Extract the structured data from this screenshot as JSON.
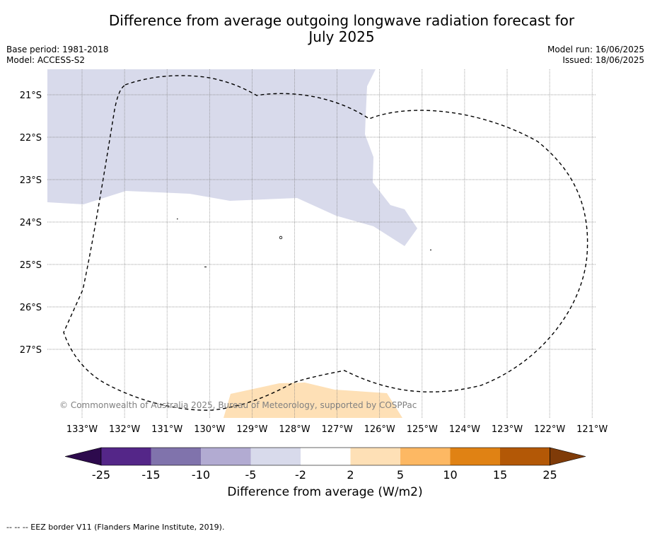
{
  "title_line1": "Difference from average outgoing longwave radiation forecast for",
  "title_line2": "July 2025",
  "base_period": "Base period: 1981-2018",
  "model": "Model: ACCESS-S2",
  "model_run": "Model run: 16/06/2025",
  "issued": "Issued: 18/06/2025",
  "copyright": "© Commonwealth of Australia 2025, Bureau of Meteorology, supported by COSPPac",
  "lat_labels": [
    "21°S",
    "22°S",
    "23°S",
    "24°S",
    "25°S",
    "26°S",
    "27°S"
  ],
  "lon_labels": [
    "133°W",
    "132°W",
    "131°W",
    "130°W",
    "129°W",
    "128°W",
    "127°W",
    "126°W",
    "125°W",
    "124°W",
    "123°W",
    "122°W",
    "121°W"
  ],
  "colorbar": {
    "label": "Difference from average (W/m2)",
    "ticks": [
      "-25",
      "-15",
      "-10",
      "-5",
      "-2",
      "2",
      "5",
      "10",
      "15",
      "25"
    ],
    "colors": [
      "#2d0a4d",
      "#542688",
      "#8073ac",
      "#b2abd2",
      "#d8daeb",
      "#ffffff",
      "#fee0b6",
      "#fdb863",
      "#e08214",
      "#b35806",
      "#7f3b08"
    ]
  },
  "legend_note": "--  --  -- EEZ border V11 (Flanders Marine Institute, 2019)."
}
